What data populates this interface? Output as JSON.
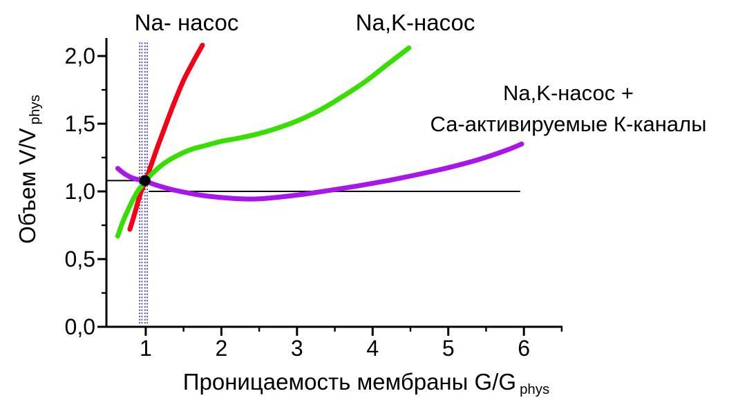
{
  "figure": {
    "background": "#ffffff",
    "y_axis_title": {
      "main": "Объем  V/V",
      "sub": "phys"
    },
    "x_axis_title": {
      "main": "Проницаемость мембраны  G/G",
      "sub": "phys"
    },
    "curve_labels": {
      "red": "Na- насос",
      "green": "Na,K-насос",
      "purple_line1": "Na,K-насос +",
      "purple_line2": "Са-активируемые К-каналы"
    }
  },
  "chart_data": {
    "type": "line",
    "title": "",
    "xlabel": "Проницаемость мембраны G/G phys",
    "ylabel": "Объем V/V phys",
    "xlim": [
      0.48,
      6.51
    ],
    "ylim": [
      0,
      2.133
    ],
    "grid": false,
    "legend_position": "labels-on-plot",
    "x_ticks": [
      1,
      2,
      3,
      4,
      5,
      6
    ],
    "x_tick_labels": [
      "1",
      "2",
      "3",
      "4",
      "5",
      "6"
    ],
    "x_minor_ticks": [
      1.5,
      2.5,
      3.5,
      4.5,
      5.5,
      6.5
    ],
    "y_ticks": [
      0,
      0.5,
      1.0,
      1.5,
      2.0
    ],
    "y_tick_labels": [
      "0,0",
      "0,5",
      "1,0",
      "1,5",
      "2,0"
    ],
    "y_minor_ticks": [
      0.25,
      0.75,
      1.25,
      1.75
    ],
    "series": [
      {
        "name": "Na- насос",
        "color": "#f50016",
        "width": 7,
        "x": [
          0.79,
          0.84,
          0.89,
          0.94,
          1.0,
          1.08,
          1.17,
          1.27,
          1.38,
          1.5,
          1.62,
          1.75
        ],
        "y": [
          0.72,
          0.81,
          0.91,
          1.0,
          1.08,
          1.21,
          1.35,
          1.5,
          1.66,
          1.82,
          1.95,
          2.08
        ]
      },
      {
        "name": "Na,K-насос",
        "color": "#36df00",
        "width": 7,
        "x": [
          0.63,
          0.7,
          0.78,
          0.86,
          0.93,
          1.0,
          1.1,
          1.25,
          1.4,
          1.6,
          1.8,
          2.0,
          2.2,
          2.45,
          2.7,
          3.0,
          3.3,
          3.6,
          3.9,
          4.2,
          4.48
        ],
        "y": [
          0.67,
          0.78,
          0.88,
          0.97,
          1.03,
          1.08,
          1.14,
          1.21,
          1.26,
          1.31,
          1.34,
          1.37,
          1.39,
          1.42,
          1.46,
          1.52,
          1.6,
          1.7,
          1.81,
          1.94,
          2.06
        ]
      },
      {
        "name": "Na,K-насос + Са-активируемые К-каналы",
        "color": "#a816ea",
        "width": 7,
        "x": [
          0.63,
          0.72,
          0.82,
          0.92,
          1.0,
          1.12,
          1.3,
          1.5,
          1.75,
          2.0,
          2.25,
          2.5,
          2.8,
          3.1,
          3.4,
          3.8,
          4.2,
          4.6,
          5.0,
          5.4,
          5.75,
          5.97
        ],
        "y": [
          1.17,
          1.13,
          1.1,
          1.085,
          1.075,
          1.05,
          1.02,
          0.995,
          0.97,
          0.955,
          0.945,
          0.945,
          0.96,
          0.98,
          1.005,
          1.04,
          1.08,
          1.125,
          1.175,
          1.235,
          1.3,
          1.35
        ]
      }
    ],
    "reference_lines": [
      {
        "y": 1.0,
        "x1": 1.04,
        "x2": 5.95,
        "color": "#000000",
        "width": 2
      },
      {
        "y": 1.08,
        "x1": 0.49,
        "x2": 0.98,
        "color": "#000000",
        "width": 2
      }
    ],
    "vertical_dotted_lines": {
      "x_positions": [
        0.92,
        0.95,
        0.99,
        1.02
      ],
      "y1": 0.02,
      "y2": 2.1,
      "color": "#3b2ed2"
    },
    "intersection_point": {
      "x": 0.99,
      "y": 1.08,
      "r": 8,
      "color": "#000000"
    },
    "axis_color": "#000000"
  }
}
